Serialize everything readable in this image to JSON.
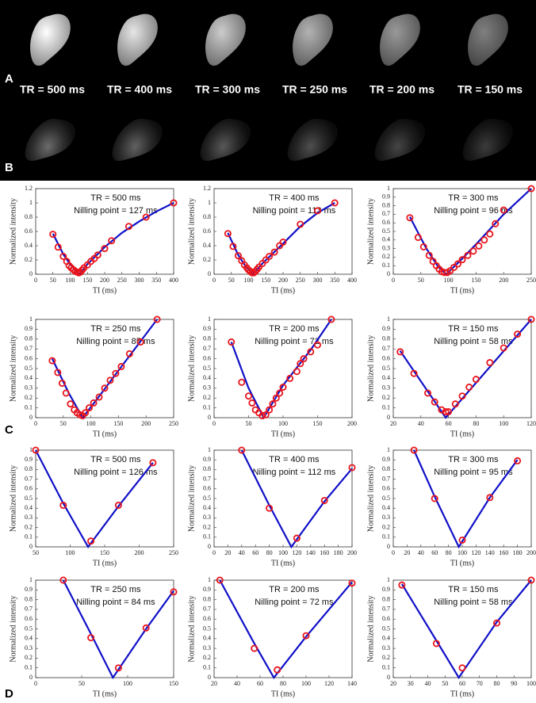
{
  "panel_labels": [
    "A",
    "B",
    "C",
    "D"
  ],
  "image_labels": [
    "TR = 500 ms",
    "TR = 400 ms",
    "TR = 300 ms",
    "TR = 250 ms",
    "TR = 200 ms",
    "TR = 150 ms"
  ],
  "chart_data": [
    {
      "type": "scatter",
      "annotations": [
        "TR = 500 ms",
        "Nilling point = 127 ms"
      ],
      "xlabel": "TI (ms)",
      "ylabel": "Normalized intensity",
      "xlim": [
        0,
        400
      ],
      "xticks": [
        0,
        50,
        100,
        150,
        200,
        250,
        300,
        350,
        400
      ],
      "ylim": [
        0,
        1.2
      ],
      "yticks": [
        0,
        0.2,
        0.4,
        0.6,
        0.8,
        1,
        1.2
      ],
      "points": {
        "color": "#e8141b",
        "x": [
          50,
          65,
          80,
          90,
          97,
          103,
          110,
          115,
          120,
          125,
          130,
          135,
          140,
          150,
          160,
          170,
          180,
          200,
          220,
          270,
          320,
          400
        ],
        "values": [
          0.56,
          0.38,
          0.25,
          0.18,
          0.12,
          0.09,
          0.06,
          0.04,
          0.03,
          0.02,
          0.03,
          0.06,
          0.09,
          0.13,
          0.18,
          0.22,
          0.27,
          0.36,
          0.47,
          0.67,
          0.8,
          1.0
        ]
      },
      "fit": {
        "color": "#1010c8",
        "x": [
          50,
          80,
          100,
          127,
          150,
          200,
          250,
          300,
          350,
          400
        ],
        "values": [
          0.57,
          0.28,
          0.14,
          0,
          0.14,
          0.38,
          0.58,
          0.74,
          0.88,
          1.0
        ]
      }
    },
    {
      "type": "scatter",
      "annotations": [
        "TR = 400 ms",
        "Nilling point = 113 ms"
      ],
      "xlabel": "TI (ms)",
      "ylabel": "Normalized intensity",
      "xlim": [
        0,
        400
      ],
      "xticks": [
        0,
        50,
        100,
        150,
        200,
        250,
        300,
        350,
        400
      ],
      "ylim": [
        0,
        1.2
      ],
      "yticks": [
        0,
        0.2,
        0.4,
        0.6,
        0.8,
        1,
        1.2
      ],
      "points": {
        "color": "#e8141b",
        "x": [
          40,
          55,
          70,
          80,
          88,
          95,
          100,
          105,
          110,
          115,
          120,
          125,
          130,
          140,
          150,
          160,
          175,
          190,
          200,
          250,
          300,
          350
        ],
        "values": [
          0.57,
          0.39,
          0.26,
          0.19,
          0.13,
          0.09,
          0.06,
          0.04,
          0.02,
          0.02,
          0.04,
          0.07,
          0.1,
          0.15,
          0.2,
          0.25,
          0.31,
          0.4,
          0.45,
          0.7,
          0.89,
          1.0
        ]
      },
      "fit": {
        "color": "#1010c8",
        "x": [
          40,
          70,
          90,
          113,
          140,
          200,
          250,
          300,
          350
        ],
        "values": [
          0.58,
          0.27,
          0.12,
          0,
          0.15,
          0.43,
          0.67,
          0.86,
          1.0
        ]
      }
    },
    {
      "type": "scatter",
      "annotations": [
        "TR = 300 ms",
        "Nilling point = 96 ms"
      ],
      "xlabel": "TI (ms)",
      "ylabel": "Normalized intensity",
      "xlim": [
        0,
        250
      ],
      "xticks": [
        0,
        50,
        100,
        150,
        200,
        250
      ],
      "ylim": [
        0,
        1
      ],
      "yticks": [
        0,
        0.1,
        0.2,
        0.3,
        0.4,
        0.5,
        0.6,
        0.7,
        0.8,
        0.9,
        1
      ],
      "points": {
        "color": "#e8141b",
        "x": [
          30,
          45,
          55,
          65,
          72,
          78,
          83,
          88,
          93,
          98,
          103,
          110,
          117,
          125,
          135,
          145,
          155,
          165,
          175,
          185,
          200,
          250
        ],
        "values": [
          0.66,
          0.43,
          0.32,
          0.22,
          0.15,
          0.1,
          0.06,
          0.03,
          0.02,
          0.02,
          0.04,
          0.08,
          0.12,
          0.17,
          0.22,
          0.27,
          0.33,
          0.4,
          0.47,
          0.59,
          0.75,
          1.0
        ]
      },
      "fit": {
        "color": "#1010c8",
        "x": [
          30,
          60,
          80,
          96,
          120,
          150,
          200,
          250
        ],
        "values": [
          0.67,
          0.3,
          0.1,
          0,
          0.15,
          0.35,
          0.7,
          1.0
        ]
      }
    },
    {
      "type": "scatter",
      "annotations": [
        "TR = 250 ms",
        "Nilling point = 85 ms"
      ],
      "xlabel": "TI (ms)",
      "ylabel": "Normalized intensity",
      "xlim": [
        0,
        250
      ],
      "xticks": [
        0,
        50,
        100,
        150,
        200,
        250
      ],
      "ylim": [
        0,
        1
      ],
      "yticks": [
        0,
        0.1,
        0.2,
        0.3,
        0.4,
        0.5,
        0.6,
        0.7,
        0.8,
        0.9,
        1
      ],
      "points": {
        "color": "#e8141b",
        "x": [
          30,
          40,
          48,
          55,
          63,
          70,
          75,
          80,
          85,
          90,
          97,
          105,
          115,
          125,
          135,
          145,
          155,
          170,
          190,
          220
        ],
        "values": [
          0.58,
          0.46,
          0.35,
          0.25,
          0.14,
          0.08,
          0.05,
          0.03,
          0.02,
          0.05,
          0.1,
          0.15,
          0.21,
          0.3,
          0.38,
          0.45,
          0.52,
          0.65,
          0.77,
          1.0
        ]
      },
      "fit": {
        "color": "#1010c8",
        "x": [
          30,
          60,
          85,
          110,
          150,
          220
        ],
        "values": [
          0.6,
          0.25,
          0,
          0.18,
          0.48,
          1.0
        ]
      }
    },
    {
      "type": "scatter",
      "annotations": [
        "TR = 200 ms",
        "Nilling point = 72 ms"
      ],
      "xlabel": "TI (ms)",
      "ylabel": "Normalized intensity",
      "xlim": [
        0,
        200
      ],
      "xticks": [
        0,
        50,
        100,
        150,
        200
      ],
      "ylim": [
        0,
        1
      ],
      "yticks": [
        0,
        0.1,
        0.2,
        0.3,
        0.4,
        0.5,
        0.6,
        0.7,
        0.8,
        0.9,
        1
      ],
      "points": {
        "color": "#e8141b",
        "x": [
          25,
          40,
          50,
          55,
          60,
          65,
          70,
          75,
          80,
          85,
          90,
          95,
          100,
          110,
          120,
          125,
          130,
          140,
          150,
          170
        ],
        "values": [
          0.77,
          0.36,
          0.22,
          0.15,
          0.08,
          0.05,
          0.02,
          0.03,
          0.08,
          0.14,
          0.2,
          0.25,
          0.31,
          0.4,
          0.47,
          0.55,
          0.6,
          0.67,
          0.74,
          1.0
        ]
      },
      "fit": {
        "color": "#1010c8",
        "x": [
          25,
          50,
          72,
          100,
          140,
          170
        ],
        "values": [
          0.77,
          0.3,
          0,
          0.33,
          0.69,
          1.0
        ]
      }
    },
    {
      "type": "scatter",
      "annotations": [
        "TR = 150 ms",
        "Nilling point = 58 ms"
      ],
      "xlabel": "TI (ms)",
      "ylabel": "Normalized intensity",
      "xlim": [
        20,
        120
      ],
      "xticks": [
        20,
        40,
        60,
        80,
        100,
        120
      ],
      "ylim": [
        0,
        1
      ],
      "yticks": [
        0,
        0.1,
        0.2,
        0.3,
        0.4,
        0.5,
        0.6,
        0.7,
        0.8,
        0.9,
        1
      ],
      "points": {
        "color": "#e8141b",
        "x": [
          25,
          35,
          45,
          50,
          55,
          58,
          60,
          65,
          70,
          75,
          80,
          90,
          100,
          110,
          120
        ],
        "values": [
          0.67,
          0.45,
          0.25,
          0.16,
          0.08,
          0.06,
          0.06,
          0.14,
          0.22,
          0.31,
          0.39,
          0.56,
          0.71,
          0.85,
          1.0
        ]
      },
      "fit": {
        "color": "#1010c8",
        "x": [
          25,
          58,
          120
        ],
        "values": [
          0.68,
          0,
          1.0
        ]
      }
    },
    {
      "type": "scatter",
      "annotations": [
        "TR = 500 ms",
        "Nilling point = 126 ms"
      ],
      "xlabel": "TI (ms)",
      "ylabel": "Normalized intensity",
      "xlim": [
        50,
        250
      ],
      "xticks": [
        50,
        100,
        150,
        200,
        250
      ],
      "ylim": [
        0,
        1
      ],
      "yticks": [
        0,
        0.1,
        0.2,
        0.3,
        0.4,
        0.5,
        0.6,
        0.7,
        0.8,
        0.9,
        1
      ],
      "points": {
        "color": "#e8141b",
        "x": [
          50,
          90,
          130,
          170,
          220
        ],
        "values": [
          1.0,
          0.43,
          0.06,
          0.43,
          0.87
        ]
      },
      "fit": {
        "color": "#1010c8",
        "x": [
          50,
          90,
          126,
          170,
          220
        ],
        "values": [
          1.0,
          0.45,
          0,
          0.42,
          0.87
        ]
      }
    },
    {
      "type": "scatter",
      "annotations": [
        "TR = 400 ms",
        "Nilling point = 112 ms"
      ],
      "xlabel": "TI (ms)",
      "ylabel": "Normalized intensity",
      "xlim": [
        0,
        200
      ],
      "xticks": [
        0,
        20,
        40,
        60,
        80,
        100,
        120,
        140,
        160,
        180,
        200
      ],
      "ylim": [
        0,
        1
      ],
      "yticks": [
        0,
        0.1,
        0.2,
        0.3,
        0.4,
        0.5,
        0.6,
        0.7,
        0.8,
        0.9,
        1
      ],
      "points": {
        "color": "#e8141b",
        "x": [
          40,
          80,
          120,
          160,
          200
        ],
        "values": [
          1.0,
          0.4,
          0.09,
          0.48,
          0.82
        ]
      },
      "fit": {
        "color": "#1010c8",
        "x": [
          40,
          80,
          112,
          160,
          200
        ],
        "values": [
          1.0,
          0.43,
          0,
          0.47,
          0.81
        ]
      }
    },
    {
      "type": "scatter",
      "annotations": [
        "TR = 300 ms",
        "Nilling point = 95 ms"
      ],
      "xlabel": "TI (ms)",
      "ylabel": "Normalized intensity",
      "xlim": [
        0,
        200
      ],
      "xticks": [
        0,
        20,
        40,
        60,
        80,
        100,
        120,
        140,
        160,
        180,
        200
      ],
      "ylim": [
        0,
        1
      ],
      "yticks": [
        0,
        0.1,
        0.2,
        0.3,
        0.4,
        0.5,
        0.6,
        0.7,
        0.8,
        0.9,
        1
      ],
      "points": {
        "color": "#e8141b",
        "x": [
          30,
          60,
          100,
          140,
          180
        ],
        "values": [
          1.0,
          0.5,
          0.07,
          0.51,
          0.89
        ]
      },
      "fit": {
        "color": "#1010c8",
        "x": [
          30,
          60,
          95,
          140,
          180
        ],
        "values": [
          1.0,
          0.52,
          0,
          0.51,
          0.9
        ]
      }
    },
    {
      "type": "scatter",
      "annotations": [
        "TR = 250 ms",
        "Nilling point = 84 ms"
      ],
      "xlabel": "TI (ms)",
      "ylabel": "Normalized intensity",
      "xlim": [
        0,
        150
      ],
      "xticks": [
        0,
        50,
        100,
        150
      ],
      "ylim": [
        0,
        1
      ],
      "yticks": [
        0,
        0.1,
        0.2,
        0.3,
        0.4,
        0.5,
        0.6,
        0.7,
        0.8,
        0.9,
        1
      ],
      "points": {
        "color": "#e8141b",
        "x": [
          30,
          60,
          90,
          120,
          150
        ],
        "values": [
          1.0,
          0.41,
          0.1,
          0.51,
          0.88
        ]
      },
      "fit": {
        "color": "#1010c8",
        "x": [
          30,
          60,
          84,
          120,
          150
        ],
        "values": [
          1.0,
          0.45,
          0,
          0.5,
          0.89
        ]
      }
    },
    {
      "type": "scatter",
      "annotations": [
        "TR = 200 ms",
        "Nilling point = 72 ms"
      ],
      "xlabel": "TI (ms)",
      "ylabel": "Normalized intensity",
      "xlim": [
        20,
        140
      ],
      "xticks": [
        20,
        40,
        60,
        80,
        100,
        120,
        140
      ],
      "ylim": [
        0,
        1
      ],
      "yticks": [
        0,
        0.1,
        0.2,
        0.3,
        0.4,
        0.5,
        0.6,
        0.7,
        0.8,
        0.9,
        1
      ],
      "points": {
        "color": "#e8141b",
        "x": [
          25,
          55,
          75,
          100,
          140
        ],
        "values": [
          1.0,
          0.3,
          0.08,
          0.43,
          0.97
        ]
      },
      "fit": {
        "color": "#1010c8",
        "x": [
          25,
          55,
          72,
          100,
          140
        ],
        "values": [
          1.0,
          0.35,
          0,
          0.42,
          0.98
        ]
      }
    },
    {
      "type": "scatter",
      "annotations": [
        "TR = 150 ms",
        "Nilling point = 58 ms"
      ],
      "xlabel": "TI (ms)",
      "ylabel": "Normalized intensity",
      "xlim": [
        20,
        100
      ],
      "xticks": [
        20,
        30,
        40,
        50,
        60,
        70,
        80,
        90,
        100
      ],
      "ylim": [
        0,
        1
      ],
      "yticks": [
        0,
        0.1,
        0.2,
        0.3,
        0.4,
        0.5,
        0.6,
        0.7,
        0.8,
        0.9,
        1
      ],
      "points": {
        "color": "#e8141b",
        "x": [
          25,
          45,
          60,
          80,
          100
        ],
        "values": [
          0.95,
          0.35,
          0.1,
          0.56,
          1.0
        ]
      },
      "fit": {
        "color": "#1010c8",
        "x": [
          25,
          45,
          58,
          80,
          100
        ],
        "values": [
          0.96,
          0.38,
          0,
          0.57,
          1.0
        ]
      }
    }
  ]
}
